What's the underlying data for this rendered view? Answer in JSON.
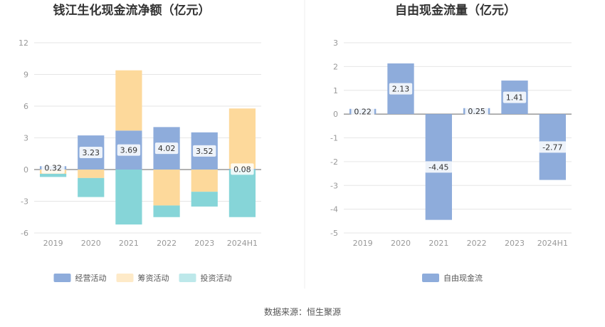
{
  "source": "数据来源：恒生聚源",
  "chart_data": [
    {
      "type": "bar",
      "stacked": true,
      "title": "钱江生化现金流净额（亿元）",
      "categories": [
        "2019",
        "2020",
        "2021",
        "2022",
        "2023",
        "2024H1"
      ],
      "yticks": [
        "12",
        "9",
        "6",
        "3",
        "0",
        "-3",
        "-6"
      ],
      "ylim": [
        -6,
        12
      ],
      "grid": true,
      "legend_position": "bottom",
      "series": [
        {
          "name": "经营活动",
          "color": "#8eacdb",
          "values": [
            0.32,
            3.23,
            3.69,
            4.02,
            3.52,
            0.08
          ]
        },
        {
          "name": "筹资活动",
          "color": "#fdd99b",
          "values": [
            -0.4,
            -0.8,
            5.7,
            -3.4,
            -2.1,
            5.7
          ]
        },
        {
          "name": "投资活动",
          "color": "#86d5d8",
          "values": [
            -0.3,
            -1.8,
            -5.2,
            -1.1,
            -1.4,
            -4.5
          ]
        }
      ],
      "data_labels": [
        "0.32",
        "3.23",
        "3.69",
        "4.02",
        "3.52",
        "0.08"
      ]
    },
    {
      "type": "bar",
      "title": "自由现金流量（亿元）",
      "categories": [
        "2019",
        "2020",
        "2021",
        "2022",
        "2023",
        "2024H1"
      ],
      "yticks": [
        "3",
        "2",
        "1",
        "0",
        "-1",
        "-2",
        "-3",
        "-4",
        "-5"
      ],
      "ylim": [
        -5,
        3
      ],
      "grid": true,
      "legend_position": "bottom",
      "series": [
        {
          "name": "自由现金流",
          "color": "#8eacdb",
          "values": [
            0.22,
            2.13,
            -4.45,
            0.25,
            1.41,
            -2.77
          ]
        }
      ],
      "data_labels": [
        "0.22",
        "2.13",
        "-4.45",
        "0.25",
        "1.41",
        "-2.77"
      ]
    }
  ]
}
